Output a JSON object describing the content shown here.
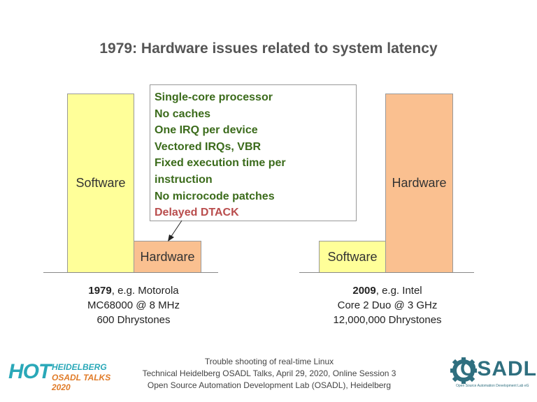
{
  "title": "1979: Hardware issues related to system latency",
  "bars_1979": {
    "software_label": "Software",
    "hardware_label": "Hardware"
  },
  "bars_2009": {
    "software_label": "Software",
    "hardware_label": "Hardware"
  },
  "callout": {
    "lines": [
      "Single-core processor",
      "No caches",
      "One IRQ per device",
      "Vectored IRQs, VBR",
      "Fixed execution time per",
      "instruction",
      "No microcode patches"
    ],
    "highlight": "Delayed DTACK"
  },
  "caption_1979": {
    "year": "1979",
    "line1_rest": ", e.g. Motorola",
    "line2": "MC68000 @ 8 MHz",
    "line3": "600 Dhrystones"
  },
  "caption_2009": {
    "year": "2009",
    "line1_rest": ", e.g. Intel",
    "line2": "Core 2 Duo @ 3 GHz",
    "line3": "12,000,000 Dhrystones"
  },
  "footer": {
    "line1": "Trouble shooting of real-time Linux",
    "line2": "Technical Heidelberg OSADL Talks, April 29, 2020, Online Session 3",
    "line3": "Open Source Automation Development Lab (OSADL), Heidelberg"
  },
  "hot_logo": {
    "mark": "HOT",
    "line1": "HEIDELBERG",
    "line2": "OSADL TALKS 2020"
  },
  "osadl_logo": {
    "mark": "OSADL",
    "tagline": "Open Source Automation Development Lab eG"
  },
  "colors": {
    "software": "#ffff99",
    "hardware": "#fac090",
    "callout_text": "#3b6b1b",
    "callout_highlight": "#b94d4d"
  }
}
